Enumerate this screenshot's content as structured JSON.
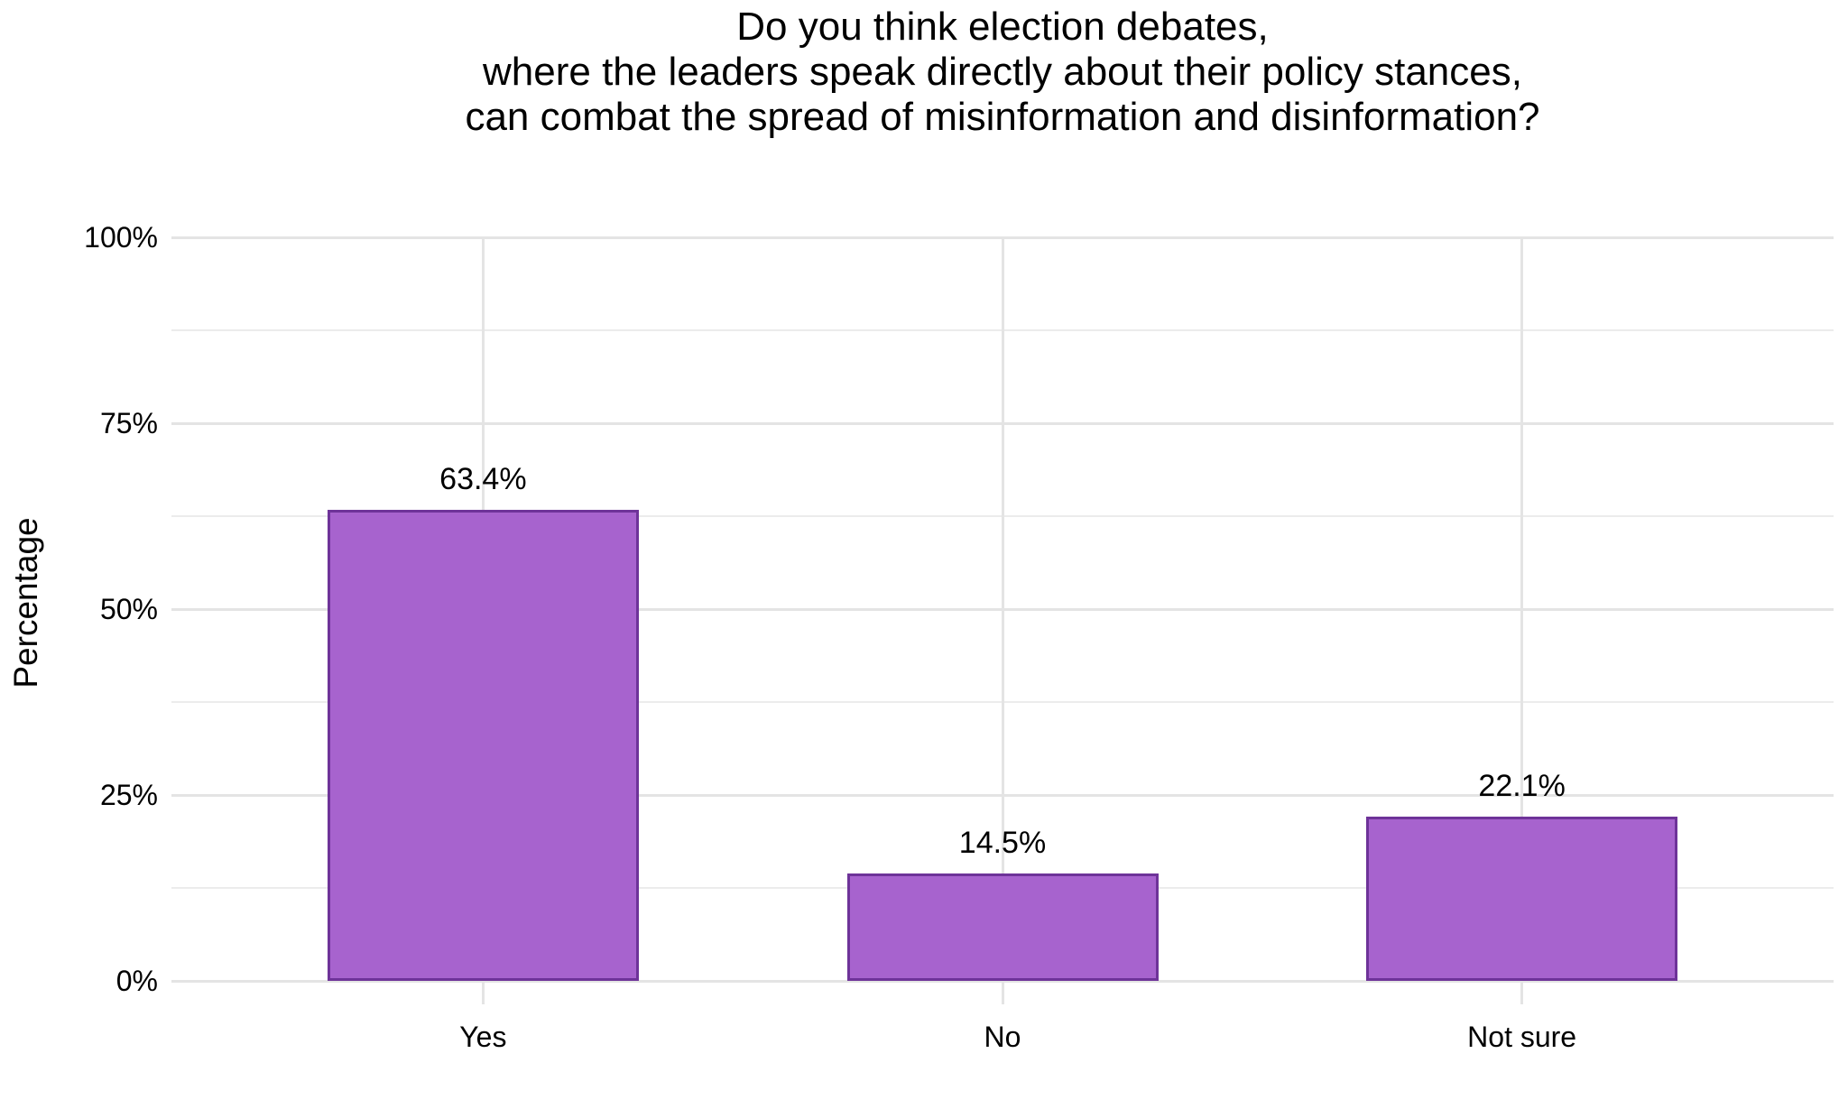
{
  "chart_title": "Do you think election debates,\nwhere the leaders speak directly about their policy stances,\ncan combat the spread of misinformation and disinformation?",
  "chart_data": {
    "type": "bar",
    "title": "Do you think election debates, where the leaders speak directly about their policy stances, can combat the spread of misinformation and disinformation?",
    "categories": [
      "Yes",
      "No",
      "Not sure"
    ],
    "values": [
      63.4,
      14.5,
      22.1
    ],
    "value_labels": [
      "63.4%",
      "14.5%",
      "22.1%"
    ],
    "xlabel": "",
    "ylabel": "Percentage",
    "ylim": [
      0,
      100
    ],
    "ytick_values": [
      0,
      25,
      50,
      75,
      100
    ],
    "ytick_labels": [
      "0%",
      "25%",
      "50%",
      "75%",
      "100%"
    ],
    "yminor_values": [
      12.5,
      37.5,
      62.5,
      87.5
    ],
    "grid": "horizontal major+minor, vertical at category centers",
    "legend": "none",
    "bar_width_fraction": 0.6,
    "colors": {
      "bar_fill": "#A763CE",
      "bar_border": "#6E3399",
      "gridline_major": "#E4E4E4",
      "gridline_minor": "#ECECEC",
      "text": "#000000",
      "background": "#FFFFFF"
    }
  }
}
